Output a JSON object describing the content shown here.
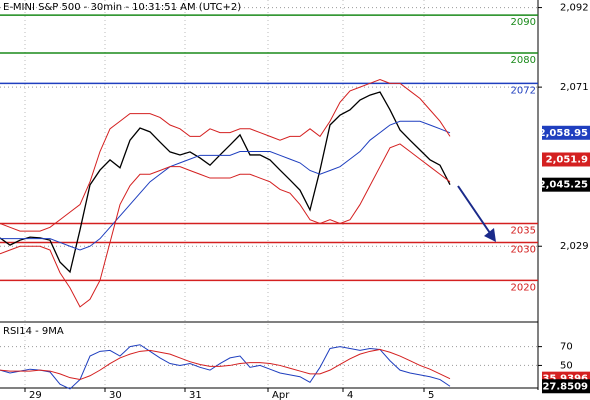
{
  "chart_data": [
    {
      "type": "line",
      "title": "E-MINI S&P 500 - 30min - 10:31:51 AM (UTC+2)",
      "x": [
        0,
        1,
        2,
        3,
        4,
        5,
        6,
        7,
        8,
        9,
        10,
        11,
        12,
        13,
        14,
        15,
        16,
        17,
        18,
        19,
        20,
        21,
        22,
        23,
        24,
        25,
        26,
        27,
        28,
        29,
        30,
        31,
        32,
        33,
        34,
        35,
        36,
        37,
        38,
        39,
        40,
        41,
        42,
        43,
        44,
        45
      ],
      "series": [
        {
          "color": "#000000",
          "values": [
            2031.2,
            2029.3,
            2030.6,
            2031.4,
            2031.2,
            2030.6,
            2024.8,
            2022.2,
            2033.3,
            2045.2,
            2049.1,
            2051.8,
            2049.7,
            2057.0,
            2060.2,
            2059.2,
            2056.5,
            2053.9,
            2053.1,
            2053.9,
            2052.3,
            2050.4,
            2053.1,
            2055.7,
            2058.4,
            2053.1,
            2053.1,
            2051.8,
            2049.1,
            2046.5,
            2043.8,
            2038.6,
            2049.1,
            2061.0,
            2063.6,
            2065.0,
            2067.6,
            2068.9,
            2069.7,
            2065.0,
            2059.7,
            2057.0,
            2054.4,
            2051.8,
            2050.4,
            2045.25
          ]
        },
        {
          "color": "#1f3fbf",
          "values": [
            2031,
            2031,
            2031,
            2031,
            2031,
            2031,
            2030,
            2029,
            2028,
            2029,
            2031,
            2034,
            2037,
            2040,
            2043,
            2046,
            2048,
            2050,
            2051,
            2052,
            2053,
            2053,
            2053,
            2053,
            2054,
            2054,
            2054,
            2054,
            2053,
            2052,
            2051,
            2049,
            2048,
            2049,
            2050,
            2052,
            2054,
            2057,
            2059,
            2061,
            2062,
            2062,
            2062,
            2061,
            2060,
            2058.95
          ]
        },
        {
          "color": "#d42020",
          "values": [
            2035,
            2034,
            2033,
            2033,
            2033,
            2034,
            2036,
            2038,
            2040,
            2046,
            2054,
            2060,
            2062,
            2064,
            2064,
            2064,
            2063,
            2061,
            2060,
            2058,
            2058,
            2060,
            2059,
            2059,
            2060,
            2060,
            2059,
            2058,
            2057,
            2058,
            2058,
            2060,
            2058,
            2062,
            2067,
            2070,
            2071,
            2072,
            2073,
            2072,
            2072,
            2070,
            2068,
            2065,
            2062,
            2058
          ]
        },
        {
          "color": "#d42020",
          "values": [
            2027,
            2028,
            2029,
            2029,
            2029,
            2028,
            2022,
            2018,
            2013,
            2015,
            2020,
            2030,
            2040,
            2045,
            2048,
            2048,
            2049,
            2050,
            2050,
            2049,
            2048,
            2047,
            2047,
            2047,
            2048,
            2048,
            2047,
            2046,
            2044,
            2043,
            2040,
            2036,
            2035,
            2036,
            2035,
            2036,
            2040,
            2045,
            2050,
            2055,
            2056,
            2054,
            2052,
            2050,
            2048,
            2046
          ]
        }
      ],
      "levels": [
        {
          "value": 2090,
          "color": "#1a8a1a"
        },
        {
          "value": 2080,
          "color": "#1a8a1a"
        },
        {
          "value": 2072,
          "color": "#1f3fbf"
        },
        {
          "value": 2035,
          "color": "#d42020"
        },
        {
          "value": 2030,
          "color": "#d42020"
        },
        {
          "value": 2020,
          "color": "#d42020"
        }
      ],
      "price_tags": [
        {
          "value": 2058.95,
          "label": "2,058.95",
          "color": "#1f3fbf"
        },
        {
          "value": 2051.9,
          "label": "2,051.9",
          "color": "#d42020"
        },
        {
          "value": 2045.25,
          "label": "2,045.25",
          "color": "#000000"
        }
      ],
      "xlim": [
        0,
        53.8
      ],
      "xticks": [
        {
          "value": 2.5,
          "label": "29"
        },
        {
          "value": 10.5,
          "label": "30"
        },
        {
          "value": 18.5,
          "label": "31"
        },
        {
          "value": 26.8,
          "label": "Apr"
        },
        {
          "value": 34.3,
          "label": "4"
        },
        {
          "value": 42.4,
          "label": "5"
        }
      ],
      "ylim": [
        2009,
        2094
      ],
      "yticks": [
        {
          "value": 2092,
          "label": "2,092"
        },
        {
          "value": 2071,
          "label": "2,071"
        },
        {
          "value": 2029,
          "label": "2,029"
        }
      ],
      "grid": true
    },
    {
      "type": "line",
      "title": "RSI14 - 9MA",
      "x": [
        0,
        1,
        2,
        3,
        4,
        5,
        6,
        7,
        8,
        9,
        10,
        11,
        12,
        13,
        14,
        15,
        16,
        17,
        18,
        19,
        20,
        21,
        22,
        23,
        24,
        25,
        26,
        27,
        28,
        29,
        30,
        31,
        32,
        33,
        34,
        35,
        36,
        37,
        38,
        39,
        40,
        41,
        42,
        43,
        44,
        45
      ],
      "series": [
        {
          "color": "#1f3fbf",
          "values": [
            45,
            42,
            44,
            46,
            45,
            43,
            30,
            25,
            35,
            60,
            65,
            66,
            60,
            70,
            72,
            65,
            58,
            52,
            50,
            52,
            48,
            45,
            52,
            58,
            60,
            48,
            50,
            46,
            42,
            40,
            38,
            32,
            48,
            68,
            70,
            68,
            66,
            68,
            67,
            55,
            45,
            42,
            40,
            38,
            35,
            27.8509
          ]
        },
        {
          "color": "#d42020",
          "values": [
            45,
            44,
            44,
            44,
            45,
            44,
            41,
            37,
            35,
            39,
            45,
            52,
            58,
            62,
            65,
            66,
            64,
            62,
            58,
            54,
            51,
            49,
            49,
            50,
            52,
            53,
            53,
            52,
            50,
            47,
            44,
            41,
            41,
            45,
            51,
            57,
            62,
            65,
            67,
            64,
            60,
            55,
            50,
            46,
            41,
            35.9396
          ]
        }
      ],
      "price_tags": [
        {
          "value": 35.9396,
          "label": "35.9396",
          "color": "#d42020"
        },
        {
          "value": 27.8509,
          "label": "27.8509",
          "color": "#000000"
        }
      ],
      "xlim": [
        0,
        53.8
      ],
      "ylim": [
        26,
        93
      ],
      "yticks": [
        70,
        50
      ],
      "grid": true
    }
  ]
}
